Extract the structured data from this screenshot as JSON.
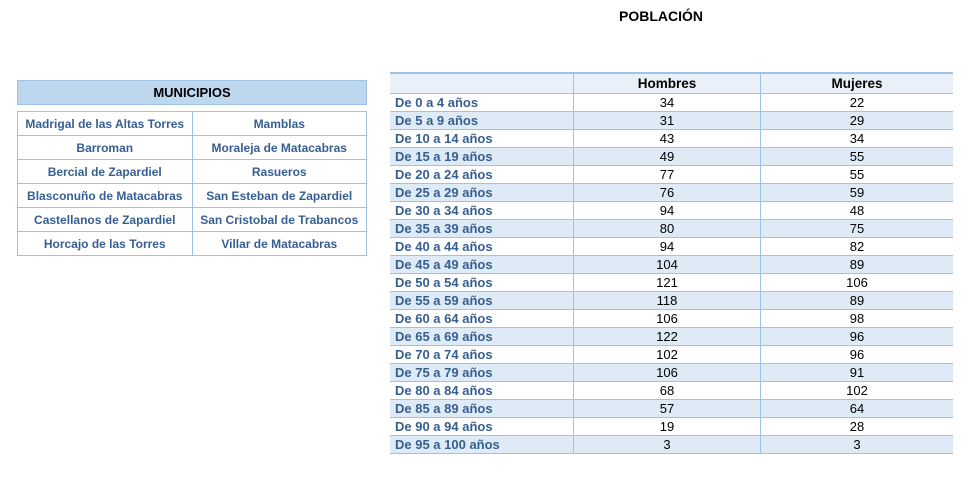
{
  "title": "POBLACIÓN",
  "colors": {
    "border": "#9DC3E6",
    "header_fill": "#BDD7EE",
    "subheader_fill": "#EAF0F7",
    "band_fill": "#DEEAF6",
    "label_text": "#365F91",
    "value_text": "#000000"
  },
  "municipios_table": {
    "header": "MUNICIPIOS",
    "rows": [
      [
        "Madrigal de las Altas Torres",
        "Mamblas"
      ],
      [
        "Barroman",
        "Moraleja de Matacabras"
      ],
      [
        "Bercial de Zapardiel",
        "Rasueros"
      ],
      [
        "Blasconuño de Matacabras",
        "San Esteban de Zapardiel"
      ],
      [
        "Castellanos de Zapardiel",
        "San Cristobal de Trabancos"
      ],
      [
        "Horcajo de las Torres",
        "Villar de Matacabras"
      ]
    ]
  },
  "population_table": {
    "columns": [
      "",
      "Hombres",
      "Mujeres"
    ],
    "rows": [
      {
        "label": "De 0 a 4 años",
        "hombres": 34,
        "mujeres": 22
      },
      {
        "label": "De 5 a 9 años",
        "hombres": 31,
        "mujeres": 29
      },
      {
        "label": "De 10 a 14 años",
        "hombres": 43,
        "mujeres": 34
      },
      {
        "label": "De 15 a 19 años",
        "hombres": 49,
        "mujeres": 55
      },
      {
        "label": "De 20 a 24 años",
        "hombres": 77,
        "mujeres": 55
      },
      {
        "label": "De 25 a 29 años",
        "hombres": 76,
        "mujeres": 59
      },
      {
        "label": "De 30 a 34 años",
        "hombres": 94,
        "mujeres": 48
      },
      {
        "label": "De 35 a 39 años",
        "hombres": 80,
        "mujeres": 75
      },
      {
        "label": "De 40 a 44 años",
        "hombres": 94,
        "mujeres": 82
      },
      {
        "label": "De 45 a 49 años",
        "hombres": 104,
        "mujeres": 89
      },
      {
        "label": "De 50 a 54 años",
        "hombres": 121,
        "mujeres": 106
      },
      {
        "label": "De 55 a 59 años",
        "hombres": 118,
        "mujeres": 89
      },
      {
        "label": "De 60 a 64 años",
        "hombres": 106,
        "mujeres": 98
      },
      {
        "label": "De 65 a 69 años",
        "hombres": 122,
        "mujeres": 96
      },
      {
        "label": "De 70 a 74 años",
        "hombres": 102,
        "mujeres": 96
      },
      {
        "label": "De 75 a 79 años",
        "hombres": 106,
        "mujeres": 91
      },
      {
        "label": "De 80 a 84 años",
        "hombres": 68,
        "mujeres": 102
      },
      {
        "label": "De 85 a 89 años",
        "hombres": 57,
        "mujeres": 64
      },
      {
        "label": "De 90 a 94 años",
        "hombres": 19,
        "mujeres": 28
      },
      {
        "label": "De 95 a 100 años",
        "hombres": 3,
        "mujeres": 3
      }
    ]
  }
}
